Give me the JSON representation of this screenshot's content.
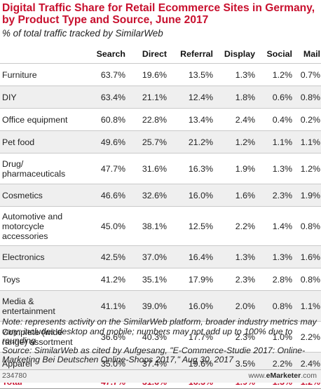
{
  "chart_data": {
    "type": "table",
    "title": "Digital Traffic Share for Retail Ecommerce Sites in Germany, by Product Type and Source, June 2017",
    "subtitle": "% of total traffic tracked by SimilarWeb",
    "columns": [
      "",
      "Search",
      "Direct",
      "Referral",
      "Display",
      "Social",
      "Mail"
    ],
    "rows": [
      {
        "label": "Furniture",
        "values": [
          "63.7%",
          "19.6%",
          "13.5%",
          "1.3%",
          "1.2%",
          "0.7%"
        ]
      },
      {
        "label": "DIY",
        "values": [
          "63.4%",
          "21.1%",
          "12.4%",
          "1.8%",
          "0.6%",
          "0.8%"
        ]
      },
      {
        "label": "Office equipment",
        "values": [
          "60.8%",
          "22.8%",
          "13.4%",
          "2.4%",
          "0.4%",
          "0.2%"
        ]
      },
      {
        "label": "Pet food",
        "values": [
          "49.6%",
          "25.7%",
          "21.2%",
          "1.2%",
          "1.1%",
          "1.1%"
        ]
      },
      {
        "label": "Drug/ pharmaceuticals",
        "values": [
          "47.7%",
          "31.6%",
          "16.3%",
          "1.9%",
          "1.3%",
          "1.2%"
        ]
      },
      {
        "label": "Cosmetics",
        "values": [
          "46.6%",
          "32.6%",
          "16.0%",
          "1.6%",
          "2.3%",
          "1.9%"
        ]
      },
      {
        "label": "Automotive and motorcycle accessories",
        "values": [
          "45.0%",
          "38.1%",
          "12.5%",
          "2.2%",
          "1.4%",
          "0.8%"
        ]
      },
      {
        "label": "Electronics",
        "values": [
          "42.5%",
          "37.0%",
          "16.4%",
          "1.3%",
          "1.3%",
          "1.6%"
        ]
      },
      {
        "label": "Toys",
        "values": [
          "41.2%",
          "35.1%",
          "17.9%",
          "2.3%",
          "2.8%",
          "0.8%"
        ]
      },
      {
        "label": "Media & entertainment",
        "values": [
          "41.1%",
          "39.0%",
          "16.0%",
          "2.0%",
          "0.8%",
          "1.1%"
        ]
      },
      {
        "label": "Complete (wide range) assortment",
        "values": [
          "36.6%",
          "40.3%",
          "17.7%",
          "2.3%",
          "1.0%",
          "2.2%"
        ]
      },
      {
        "label": "Apparel",
        "values": [
          "35.0%",
          "37.4%",
          "19.6%",
          "3.5%",
          "2.2%",
          "2.4%"
        ]
      }
    ],
    "total": {
      "label": "Total",
      "values": [
        "47.7%",
        "31.6%",
        "16.3%",
        "1.9%",
        "1.3%",
        "1.2%"
      ]
    }
  },
  "note": "Note: represents activity on the SimilarWeb platform, broader industry metrics may vary; includes desktop and mobile; numbers may not add up to 100% due to rounding",
  "source": "Source: SimilarWeb as cited by Aufgesang, \"E-Commerce-Studie 2017: Online-Marketing Bei Deutschen Online-Shops 2017,\" Aug 30, 2017",
  "footer": {
    "chart_id": "234780",
    "brand_prefix": "www.",
    "brand_name": "eMarketer",
    "brand_suffix": ".com"
  }
}
